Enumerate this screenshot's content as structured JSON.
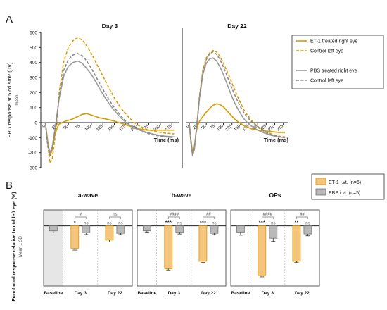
{
  "panel_labels": [
    "A",
    "B"
  ],
  "colors": {
    "et1": "#d89b00",
    "et1_fill": "#f6c57d",
    "control_et1": "#d89b00",
    "pbs": "#9a9a9a",
    "pbs_fill": "#b9b9b9",
    "control_pbs": "#8a8a8a",
    "baseline_shade": "#e6e6e6"
  },
  "chart_data": [
    {
      "type": "line",
      "panel": "A",
      "title": "Day 3",
      "xlabel": "Time (ms)",
      "ylabel": "ERG response at 5 cd·s/m² (µV)",
      "ylabel_sub": "mean",
      "ylim": [
        -300,
        600
      ],
      "yticks": [
        -300,
        -200,
        -100,
        0,
        100,
        200,
        300,
        400,
        500,
        600
      ],
      "xlim": [
        -10,
        290
      ],
      "xticks": [
        0,
        25,
        50,
        75,
        100,
        125,
        150,
        175,
        200,
        225,
        250,
        275
      ],
      "legend_position": "right",
      "series": [
        {
          "name": "ET-1 treated right eye",
          "style": "solid",
          "color": "#d89b00",
          "x": [
            0,
            5,
            10,
            15,
            20,
            25,
            30,
            40,
            50,
            60,
            70,
            80,
            90,
            100,
            110,
            120,
            130,
            140,
            150,
            160,
            170,
            180,
            190,
            200,
            220,
            240,
            260,
            280
          ],
          "y": [
            0,
            -120,
            -220,
            -180,
            -90,
            -40,
            -10,
            5,
            15,
            25,
            40,
            55,
            60,
            50,
            40,
            30,
            25,
            18,
            10,
            0,
            -10,
            -20,
            -30,
            -40,
            -50,
            -50,
            -50,
            -50
          ]
        },
        {
          "name": "Control left eye",
          "style": "dashed",
          "color": "#d89b00",
          "x": [
            0,
            5,
            10,
            15,
            20,
            25,
            30,
            40,
            50,
            60,
            70,
            80,
            90,
            100,
            110,
            120,
            130,
            140,
            150,
            160,
            170,
            180,
            190,
            200,
            220,
            240,
            260,
            280
          ],
          "y": [
            0,
            -150,
            -270,
            -240,
            -120,
            20,
            200,
            410,
            500,
            545,
            565,
            550,
            510,
            460,
            400,
            340,
            280,
            220,
            165,
            115,
            75,
            40,
            10,
            -15,
            -45,
            -60,
            -70,
            -75
          ]
        },
        {
          "name": "PBS treated right eye",
          "style": "solid",
          "color": "#9a9a9a",
          "x": [
            0,
            5,
            10,
            15,
            20,
            25,
            30,
            40,
            50,
            60,
            70,
            80,
            90,
            100,
            110,
            120,
            130,
            140,
            150,
            160,
            170,
            180,
            190,
            200,
            220,
            240,
            260,
            280
          ],
          "y": [
            0,
            -140,
            -200,
            -160,
            -60,
            50,
            160,
            310,
            375,
            400,
            410,
            395,
            360,
            320,
            270,
            215,
            165,
            120,
            80,
            45,
            15,
            -10,
            -30,
            -45,
            -65,
            -80,
            -90,
            -95
          ]
        },
        {
          "name": "Control left eye",
          "style": "dashed",
          "color": "#8a8a8a",
          "x": [
            0,
            5,
            10,
            15,
            20,
            25,
            30,
            40,
            50,
            60,
            70,
            80,
            90,
            100,
            110,
            120,
            130,
            140,
            150,
            160,
            170,
            180,
            190,
            200,
            220,
            240,
            260,
            280
          ],
          "y": [
            0,
            -150,
            -220,
            -170,
            -70,
            40,
            170,
            350,
            420,
            450,
            460,
            445,
            410,
            360,
            305,
            250,
            195,
            145,
            100,
            60,
            25,
            -5,
            -25,
            -40,
            -70,
            -85,
            -95,
            -100
          ]
        }
      ]
    },
    {
      "type": "line",
      "panel": "A",
      "title": "Day 22",
      "xlabel": "Time (ms)",
      "ylim": [
        -300,
        600
      ],
      "xlim": [
        -10,
        290
      ],
      "xticks": [
        0,
        25,
        50,
        75,
        100,
        125,
        150,
        175,
        200,
        225,
        250,
        275
      ],
      "series": [
        {
          "name": "ET-1 treated right eye",
          "style": "solid",
          "color": "#d89b00",
          "x": [
            0,
            5,
            10,
            15,
            20,
            25,
            30,
            40,
            50,
            60,
            70,
            80,
            90,
            100,
            110,
            120,
            130,
            140,
            150,
            160,
            170,
            180,
            190,
            200,
            220,
            240,
            260,
            280
          ],
          "y": [
            0,
            -110,
            -200,
            -160,
            -70,
            -20,
            10,
            40,
            70,
            95,
            115,
            125,
            120,
            105,
            80,
            55,
            30,
            10,
            -5,
            -20,
            -30,
            -40,
            -45,
            -50,
            -55,
            -60,
            -65,
            -65
          ]
        },
        {
          "name": "Control left eye",
          "style": "dashed",
          "color": "#d89b00",
          "x": [
            0,
            5,
            10,
            15,
            20,
            25,
            30,
            40,
            50,
            60,
            70,
            80,
            90,
            100,
            110,
            120,
            130,
            140,
            150,
            160,
            170,
            180,
            190,
            200,
            220,
            240,
            260,
            280
          ],
          "y": [
            0,
            -120,
            -210,
            -170,
            -70,
            50,
            180,
            350,
            430,
            465,
            480,
            470,
            440,
            395,
            345,
            290,
            235,
            180,
            130,
            85,
            50,
            20,
            -5,
            -25,
            -55,
            -75,
            -90,
            -95
          ]
        },
        {
          "name": "PBS treated right eye",
          "style": "solid",
          "color": "#9a9a9a",
          "x": [
            0,
            5,
            10,
            15,
            20,
            25,
            30,
            40,
            50,
            60,
            70,
            80,
            90,
            100,
            110,
            120,
            130,
            140,
            150,
            160,
            170,
            180,
            190,
            200,
            220,
            240,
            260,
            280
          ],
          "y": [
            0,
            -130,
            -220,
            -180,
            -70,
            40,
            160,
            320,
            395,
            425,
            430,
            410,
            370,
            320,
            260,
            200,
            145,
            100,
            60,
            25,
            0,
            -20,
            -35,
            -50,
            -70,
            -85,
            -95,
            -100
          ]
        },
        {
          "name": "Control left eye",
          "style": "dashed",
          "color": "#8a8a8a",
          "x": [
            0,
            5,
            10,
            15,
            20,
            25,
            30,
            40,
            50,
            60,
            70,
            80,
            90,
            100,
            110,
            120,
            130,
            140,
            150,
            160,
            170,
            180,
            190,
            200,
            220,
            240,
            260,
            280
          ],
          "y": [
            0,
            -125,
            -215,
            -175,
            -70,
            45,
            170,
            335,
            420,
            460,
            470,
            455,
            420,
            370,
            315,
            255,
            200,
            150,
            105,
            65,
            35,
            10,
            -10,
            -30,
            -60,
            -80,
            -92,
            -98
          ]
        }
      ]
    },
    {
      "type": "bar",
      "panel": "B",
      "ylabel": "Functional response relative to ctrl left eye (%)",
      "ylabel_sub": "Mean ± SD",
      "ylim": [
        -90,
        20
      ],
      "legend_position": "top-right",
      "legend": [
        "ET-1 i.vt. (n=6)",
        "PBS i.vt. (n=5)"
      ],
      "groups": [
        "Baseline",
        "Day 3",
        "Day 22"
      ],
      "subcharts": [
        {
          "title": "a-wave",
          "bars": [
            {
              "group": "Baseline",
              "series": "PBS i.vt. (n=5)",
              "value": -8,
              "sd": 3
            },
            {
              "group": "Day 3",
              "series": "ET-1 i.vt. (n=6)",
              "value": -36,
              "sd": 3,
              "sig": "*"
            },
            {
              "group": "Day 3",
              "series": "PBS i.vt. (n=5)",
              "value": -11,
              "sd": 3,
              "sig": "ns"
            },
            {
              "group": "Day 22",
              "series": "ET-1 i.vt. (n=6)",
              "value": -23,
              "sd": 3,
              "sig": "ns"
            },
            {
              "group": "Day 22",
              "series": "PBS i.vt. (n=5)",
              "value": -12,
              "sd": 2,
              "sig": "ns"
            }
          ],
          "brackets": [
            {
              "group": "Day 3",
              "label": "#"
            },
            {
              "group": "Day 22",
              "label": "ns"
            }
          ]
        },
        {
          "title": "b-wave",
          "bars": [
            {
              "group": "Baseline",
              "series": "PBS i.vt. (n=5)",
              "value": -8,
              "sd": 2
            },
            {
              "group": "Day 3",
              "series": "ET-1 i.vt. (n=6)",
              "value": -69,
              "sd": 2,
              "sig": "***"
            },
            {
              "group": "Day 3",
              "series": "PBS i.vt. (n=5)",
              "value": -10,
              "sd": 3,
              "sig": "ns"
            },
            {
              "group": "Day 22",
              "series": "ET-1 i.vt. (n=6)",
              "value": -57,
              "sd": 2,
              "sig": "***"
            },
            {
              "group": "Day 22",
              "series": "PBS i.vt. (n=5)",
              "value": -12,
              "sd": 2,
              "sig": "ns"
            }
          ],
          "brackets": [
            {
              "group": "Day 3",
              "label": "####"
            },
            {
              "group": "Day 22",
              "label": "##"
            }
          ]
        },
        {
          "title": "OPs",
          "bars": [
            {
              "group": "Baseline",
              "series": "PBS i.vt. (n=5)",
              "value": -10,
              "sd": 5
            },
            {
              "group": "Day 3",
              "series": "ET-1 i.vt. (n=6)",
              "value": -80,
              "sd": 2,
              "sig": "***"
            },
            {
              "group": "Day 3",
              "series": "PBS i.vt. (n=5)",
              "value": -20,
              "sd": 5,
              "sig": "ns"
            },
            {
              "group": "Day 22",
              "series": "ET-1 i.vt. (n=6)",
              "value": -57,
              "sd": 2,
              "sig": "**"
            },
            {
              "group": "Day 22",
              "series": "PBS i.vt. (n=5)",
              "value": -13,
              "sd": 3,
              "sig": "ns"
            }
          ],
          "brackets": [
            {
              "group": "Day 3",
              "label": "####"
            },
            {
              "group": "Day 22",
              "label": "##"
            }
          ]
        }
      ]
    }
  ]
}
